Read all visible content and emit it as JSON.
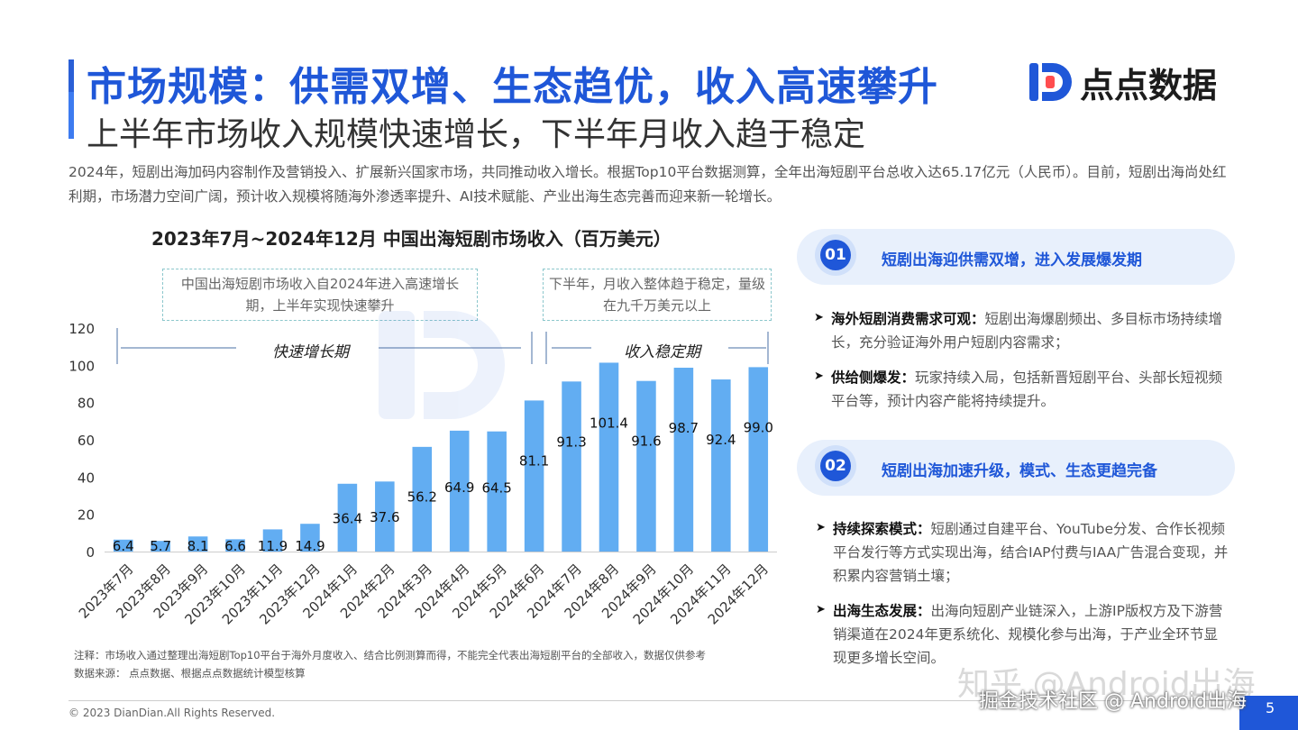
{
  "header": {
    "title": "市场规模：供需双增、生态趋优，收入高速攀升",
    "subtitle": "上半年市场收入规模快速增长，下半年月收入趋于稳定",
    "logo_text": "点点数据",
    "logo_icon": "diandian-logo-icon"
  },
  "intro": "2024年，短剧出海加码内容制作及营销投入、扩展新兴国家市场，共同推动收入增长。根据Top10平台数据测算，全年出海短剧平台总收入达65.17亿元（人民币）。目前，短剧出海尚处红利期，市场潜力空间广阔，预计收入规模将随海外渗透率提升、AI技术赋能、产业出海生态完善而迎来新一轮增长。",
  "chart_data": {
    "type": "bar",
    "title": "2023年7月~2024年12月 中国出海短剧市场收入（百万美元）",
    "categories": [
      "2023年7月",
      "2023年8月",
      "2023年9月",
      "2023年10月",
      "2023年11月",
      "2023年12月",
      "2024年1月",
      "2024年2月",
      "2024年3月",
      "2024年4月",
      "2024年5月",
      "2024年6月",
      "2024年7月",
      "2024年8月",
      "2024年9月",
      "2024年10月",
      "2024年11月",
      "2024年12月"
    ],
    "values": [
      6.4,
      5.7,
      8.1,
      6.6,
      11.9,
      14.9,
      36.4,
      37.6,
      56.2,
      64.9,
      64.5,
      81.1,
      91.3,
      101.4,
      91.6,
      98.7,
      92.4,
      99.0
    ],
    "ylim": [
      0,
      120
    ],
    "yticks": [
      0,
      20,
      40,
      60,
      80,
      100,
      120
    ],
    "bar_color": "#62adf2",
    "grid": false,
    "annotations": {
      "callout1": "中国出海短剧市场收入自2024年进入高速增长期，上半年实现快速攀升",
      "callout2": "下半年，月收入整体趋于稳定，量级在九千万美元以上",
      "phase1": "快速增长期",
      "phase2": "收入稳定期"
    }
  },
  "note": {
    "line1": "注释：市场收入通过整理出海短剧Top10平台于海外月度收入、结合比例测算而得，不能完全代表出海短剧平台的全部收入，数据仅供参考",
    "line2": "数据来源： 点点数据、根据点点数据统计模型核算"
  },
  "sidebar": {
    "section1": {
      "num": "01",
      "title": "短剧出海迎供需双增，进入发展爆发期",
      "items": [
        {
          "bold": "海外短剧消费需求可观：",
          "text": "短剧出海爆剧频出、多目标市场持续增长，充分验证海外用户短剧内容需求；"
        },
        {
          "bold": "供给侧爆发：",
          "text": "玩家持续入局，包括新晋短剧平台、头部长短视频平台等，预计内容产能将持续提升。"
        }
      ]
    },
    "section2": {
      "num": "02",
      "title": "短剧出海加速升级，模式、生态更趋完备",
      "items": [
        {
          "bold": "持续探索模式：",
          "text": "短剧通过自建平台、YouTube分发、合作长视频平台发行等方式实现出海，结合IAP付费与IAA广告混合变现，并积累内容营销土壤；"
        },
        {
          "bold": "出海生态发展：",
          "text": "出海向短剧产业链深入，上游IP版权方及下游营销渠道在2024年更系统化、规模化参与出海，于产业全环节显现更多增长空间。"
        }
      ]
    },
    "bullet_icon": "arrow-right-icon"
  },
  "footer": {
    "copyright": "© 2023 DianDian.All Rights Reserved.",
    "page_number": "5"
  },
  "watermarks": {
    "zhihu": "知乎 @Android出海",
    "juejin": "掘金技术社区 @ Android出海"
  },
  "colors": {
    "brand_blue": "#1f57d8",
    "bar": "#62adf2",
    "pill_bg": "#e8f0fc"
  }
}
